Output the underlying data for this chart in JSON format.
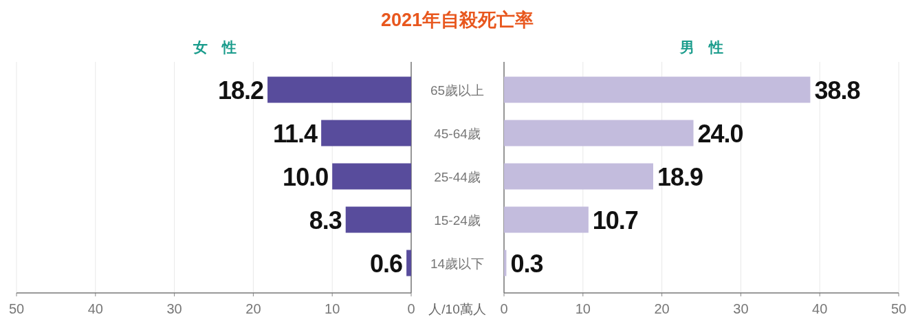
{
  "chart_data": [
    {
      "type": "bar",
      "orientation": "horizontal",
      "title": "2021年自殺死亡率",
      "subtitle": "女　性",
      "categories": [
        "65歲以上",
        "45-64歲",
        "25-44歲",
        "15-24歲",
        "14歲以下"
      ],
      "series": [
        {
          "color": "#584c9c",
          "values": [
            18.2,
            11.4,
            10.0,
            8.3,
            0.6
          ]
        }
      ],
      "xlim": [
        50,
        0
      ],
      "xticks": [
        50,
        40,
        30,
        20,
        10,
        0
      ],
      "grid": "x",
      "value_labels": [
        "18.2",
        "11.4",
        "10.0",
        "8.3",
        "0.6"
      ],
      "annotations": [
        "人/10萬人"
      ]
    },
    {
      "type": "bar",
      "orientation": "horizontal",
      "subtitle": "男　性",
      "categories": [
        null,
        null,
        null,
        null,
        null
      ],
      "series": [
        {
          "color": "#c3bcdd",
          "values": [
            38.8,
            24.0,
            18.9,
            10.7,
            0.3
          ]
        }
      ],
      "xlim": [
        0,
        50
      ],
      "xticks": [
        0,
        10,
        20,
        30,
        40,
        50
      ],
      "grid": "x",
      "value_labels": [
        "38.8",
        "24.0",
        "18.9",
        "10.7",
        "0.3"
      ],
      "tick_labels": "x"
    }
  ]
}
